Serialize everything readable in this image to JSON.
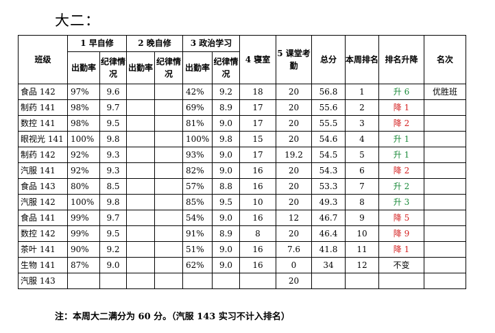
{
  "title": "大二：",
  "headers": {
    "class": "班级",
    "morning_study": "1 早自修",
    "evening_study": "2 晚自修",
    "politics": "3 政治学习",
    "dorm": "4 寝室",
    "classroom_attendance": "5 课堂考勤",
    "total": "总分",
    "week_rank": "本周排名",
    "rank_change": "排名升降",
    "honor": "名次",
    "attendance_rate": "出勤率",
    "discipline": "纪律情况"
  },
  "rows": [
    {
      "class": "食品 142",
      "m_rate": "97%",
      "m_disc": "9.6",
      "e_rate": "",
      "e_disc": "",
      "p_rate": "42%",
      "p_disc": "9.2",
      "dorm": "18",
      "attend": "20",
      "total": "56.8",
      "rank": "1",
      "change": "升 6",
      "change_dir": "up",
      "honor": "优胜班"
    },
    {
      "class": "制药 141",
      "m_rate": "98%",
      "m_disc": "9.7",
      "e_rate": "",
      "e_disc": "",
      "p_rate": "69%",
      "p_disc": "8.9",
      "dorm": "17",
      "attend": "20",
      "total": "55.6",
      "rank": "2",
      "change": "降 1",
      "change_dir": "down",
      "honor": ""
    },
    {
      "class": "数控 141",
      "m_rate": "98%",
      "m_disc": "9.5",
      "e_rate": "",
      "e_disc": "",
      "p_rate": "81%",
      "p_disc": "9.0",
      "dorm": "17",
      "attend": "20",
      "total": "55.5",
      "rank": "3",
      "change": "降 2",
      "change_dir": "down",
      "honor": ""
    },
    {
      "class": "眼视光 141",
      "m_rate": "100%",
      "m_disc": "9.8",
      "e_rate": "",
      "e_disc": "",
      "p_rate": "100%",
      "p_disc": "9.8",
      "dorm": "15",
      "attend": "20",
      "total": "54.6",
      "rank": "4",
      "change": "升 1",
      "change_dir": "up",
      "honor": ""
    },
    {
      "class": "制药 142",
      "m_rate": "92%",
      "m_disc": "9.3",
      "e_rate": "",
      "e_disc": "",
      "p_rate": "93%",
      "p_disc": "9.0",
      "dorm": "17",
      "attend": "19.2",
      "total": "54.5",
      "rank": "5",
      "change": "升 1",
      "change_dir": "up",
      "honor": ""
    },
    {
      "class": "汽服 141",
      "m_rate": "92%",
      "m_disc": "9.3",
      "e_rate": "",
      "e_disc": "",
      "p_rate": "82%",
      "p_disc": "9.0",
      "dorm": "16",
      "attend": "20",
      "total": "54.3",
      "rank": "6",
      "change": "降 2",
      "change_dir": "down",
      "honor": ""
    },
    {
      "class": "食品 143",
      "m_rate": "80%",
      "m_disc": "8.5",
      "e_rate": "",
      "e_disc": "",
      "p_rate": "57%",
      "p_disc": "8.8",
      "dorm": "16",
      "attend": "20",
      "total": "53.3",
      "rank": "7",
      "change": "升 2",
      "change_dir": "up",
      "honor": ""
    },
    {
      "class": "汽服 142",
      "m_rate": "100%",
      "m_disc": "9.8",
      "e_rate": "",
      "e_disc": "",
      "p_rate": "85%",
      "p_disc": "9.5",
      "dorm": "10",
      "attend": "20",
      "total": "49.3",
      "rank": "8",
      "change": "升 3",
      "change_dir": "up",
      "honor": ""
    },
    {
      "class": "食品 141",
      "m_rate": "99%",
      "m_disc": "9.7",
      "e_rate": "",
      "e_disc": "",
      "p_rate": "54%",
      "p_disc": "9.0",
      "dorm": "16",
      "attend": "12",
      "total": "46.7",
      "rank": "9",
      "change": "降 5",
      "change_dir": "down",
      "honor": ""
    },
    {
      "class": "数控 142",
      "m_rate": "99%",
      "m_disc": "9.5",
      "e_rate": "",
      "e_disc": "",
      "p_rate": "91%",
      "p_disc": "8.9",
      "dorm": "8",
      "attend": "20",
      "total": "46.4",
      "rank": "10",
      "change": "降 9",
      "change_dir": "down",
      "honor": ""
    },
    {
      "class": "茶叶 141",
      "m_rate": "90%",
      "m_disc": "9.2",
      "e_rate": "",
      "e_disc": "",
      "p_rate": "51%",
      "p_disc": "9.0",
      "dorm": "16",
      "attend": "7.6",
      "total": "41.8",
      "rank": "11",
      "change": "降 1",
      "change_dir": "down",
      "honor": ""
    },
    {
      "class": "生物 141",
      "m_rate": "87%",
      "m_disc": "9.0",
      "e_rate": "",
      "e_disc": "",
      "p_rate": "62%",
      "p_disc": "9.0",
      "dorm": "16",
      "attend": "0",
      "total": "34",
      "rank": "12",
      "change": "不变",
      "change_dir": "same",
      "honor": ""
    },
    {
      "class": "汽服 143",
      "m_rate": "",
      "m_disc": "",
      "e_rate": "",
      "e_disc": "",
      "p_rate": "",
      "p_disc": "",
      "dorm": "",
      "attend": "20",
      "total": "",
      "rank": "",
      "change": "",
      "change_dir": "same",
      "honor": ""
    }
  ],
  "colors": {
    "rank_up": "#1a8a3a",
    "rank_down": "#d42020"
  },
  "note": "注：本周大二满分为 60 分。（汽服 143 实习不计入排名）"
}
